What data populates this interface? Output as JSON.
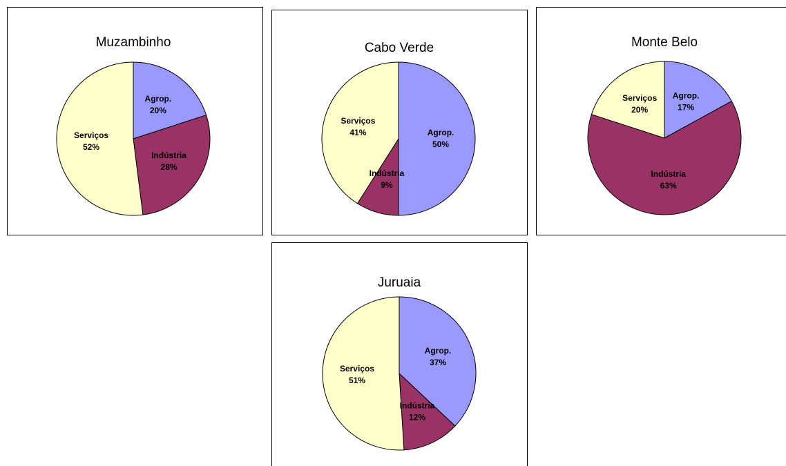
{
  "chart_data": [
    {
      "type": "pie",
      "title": "Muzambinho",
      "categories": [
        "Agrop.",
        "Indústria",
        "Serviços"
      ],
      "values": [
        20,
        28,
        52
      ],
      "value_labels": [
        "20%",
        "28%",
        "52%"
      ],
      "colors": [
        "#9999ff",
        "#993366",
        "#ffffcc"
      ]
    },
    {
      "type": "pie",
      "title": "Cabo Verde",
      "categories": [
        "Agrop.",
        "Indústria",
        "Serviços"
      ],
      "values": [
        50,
        9,
        41
      ],
      "value_labels": [
        "50%",
        "9%",
        "41%"
      ],
      "colors": [
        "#9999ff",
        "#993366",
        "#ffffcc"
      ]
    },
    {
      "type": "pie",
      "title": "Monte Belo",
      "categories": [
        "Agrop.",
        "Indústria",
        "Serviços"
      ],
      "values": [
        17,
        63,
        20
      ],
      "value_labels": [
        "17%",
        "63%",
        "20%"
      ],
      "colors": [
        "#9999ff",
        "#993366",
        "#ffffcc"
      ]
    },
    {
      "type": "pie",
      "title": "Juruaia",
      "categories": [
        "Agrop.",
        "Indústria",
        "Serviços"
      ],
      "values": [
        37,
        12,
        51
      ],
      "value_labels": [
        "37%",
        "12%",
        "51%"
      ],
      "colors": [
        "#9999ff",
        "#993366",
        "#ffffcc"
      ]
    }
  ]
}
